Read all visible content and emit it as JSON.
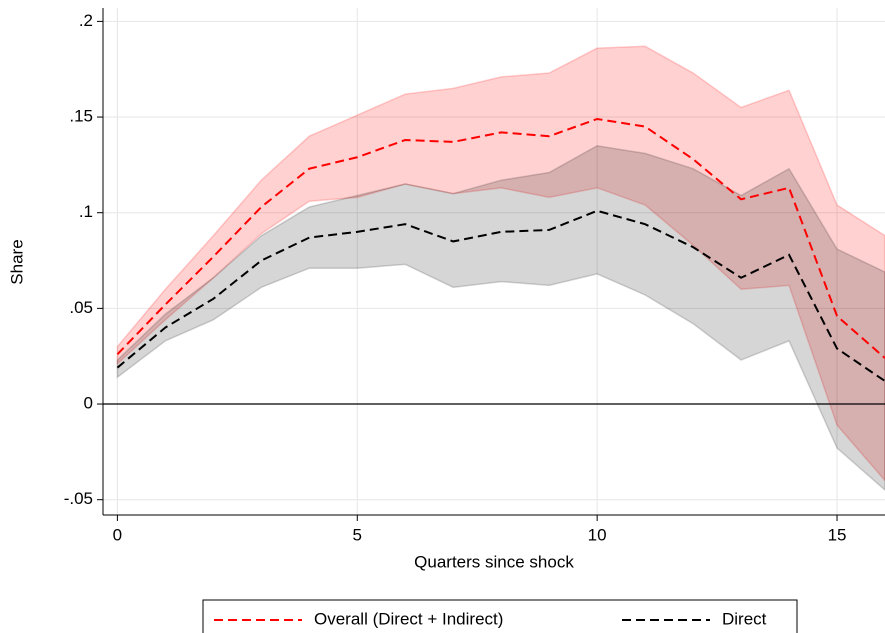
{
  "chart_data": {
    "type": "line",
    "x_label": "Quarters since shock",
    "y_label": "Share",
    "x": [
      0,
      1,
      2,
      3,
      4,
      5,
      6,
      7,
      8,
      9,
      10,
      11,
      12,
      13,
      14,
      15,
      16
    ],
    "series": [
      {
        "name": "Overall (Direct + Indirect)",
        "color": "#ff0000",
        "band_color": "rgba(255,0,0,0.18)",
        "values": [
          0.026,
          0.052,
          0.077,
          0.103,
          0.123,
          0.129,
          0.138,
          0.137,
          0.142,
          0.14,
          0.149,
          0.145,
          0.128,
          0.107,
          0.113,
          0.046,
          0.024
        ],
        "upper": [
          0.03,
          0.06,
          0.088,
          0.117,
          0.14,
          0.151,
          0.162,
          0.165,
          0.171,
          0.173,
          0.186,
          0.187,
          0.173,
          0.155,
          0.164,
          0.104,
          0.088
        ],
        "lower": [
          0.021,
          0.044,
          0.066,
          0.089,
          0.106,
          0.108,
          0.115,
          0.11,
          0.113,
          0.108,
          0.113,
          0.104,
          0.083,
          0.06,
          0.062,
          -0.011,
          -0.04
        ]
      },
      {
        "name": "Direct",
        "color": "#000000",
        "band_color": "rgba(0,0,0,0.16)",
        "values": [
          0.019,
          0.04,
          0.055,
          0.075,
          0.087,
          0.09,
          0.094,
          0.085,
          0.09,
          0.091,
          0.101,
          0.094,
          0.082,
          0.066,
          0.078,
          0.029,
          0.012
        ],
        "upper": [
          0.023,
          0.047,
          0.066,
          0.088,
          0.103,
          0.109,
          0.115,
          0.11,
          0.117,
          0.121,
          0.135,
          0.131,
          0.123,
          0.109,
          0.123,
          0.081,
          0.069
        ],
        "lower": [
          0.014,
          0.033,
          0.044,
          0.061,
          0.071,
          0.071,
          0.073,
          0.061,
          0.064,
          0.062,
          0.068,
          0.057,
          0.042,
          0.023,
          0.033,
          -0.023,
          -0.045
        ]
      }
    ],
    "xlim": [
      -0.3,
      16
    ],
    "ylim": [
      -0.058,
      0.207
    ],
    "xticks": [
      0,
      5,
      10,
      15
    ],
    "yticks": [
      {
        "value": -0.05,
        "label": "-.05"
      },
      0,
      {
        "value": 0.05,
        "label": ".05"
      },
      {
        "value": 0.1,
        "label": ".1"
      },
      {
        "value": 0.15,
        "label": ".15"
      },
      {
        "value": 0.2,
        "label": ".2"
      }
    ],
    "grid": true,
    "reference_line": 0,
    "legend": "bottom"
  }
}
